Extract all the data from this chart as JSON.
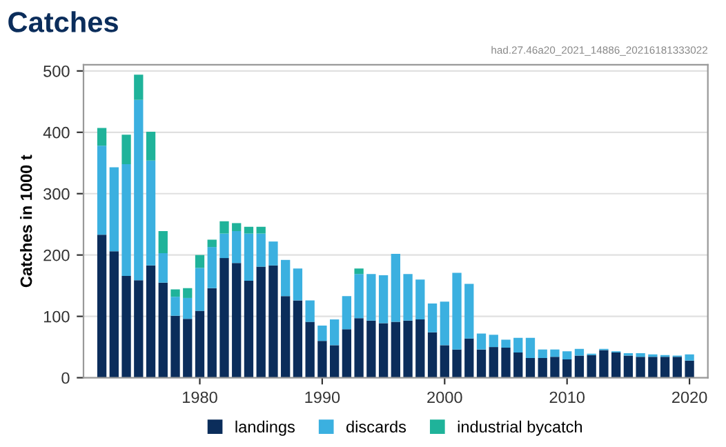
{
  "chart_data": {
    "type": "bar",
    "title": "Catches",
    "ylabel": "Catches in 1000 t",
    "stacked": true,
    "annotations": [
      "had.27.46a20_2021_14886_20216181333022"
    ],
    "x": [
      1972,
      1973,
      1974,
      1975,
      1976,
      1977,
      1978,
      1979,
      1980,
      1981,
      1982,
      1983,
      1984,
      1985,
      1986,
      1987,
      1988,
      1989,
      1990,
      1991,
      1992,
      1993,
      1994,
      1995,
      1996,
      1997,
      1998,
      1999,
      2000,
      2001,
      2002,
      2003,
      2004,
      2005,
      2006,
      2007,
      2008,
      2009,
      2010,
      2011,
      2012,
      2013,
      2014,
      2015,
      2016,
      2017,
      2018,
      2019,
      2020
    ],
    "series": [
      {
        "name": "landings",
        "color": "#0b2d5b",
        "values": [
          233,
          206,
          166,
          159,
          183,
          155,
          101,
          96,
          109,
          146,
          195,
          187,
          158,
          181,
          183,
          133,
          126,
          91,
          60,
          53,
          79,
          97,
          93,
          89,
          91,
          93,
          95,
          74,
          53,
          46,
          64,
          46,
          50,
          49,
          41,
          32,
          32,
          34,
          30,
          36,
          37,
          45,
          41,
          36,
          34,
          34,
          34,
          34,
          28
        ]
      },
      {
        "name": "discards",
        "color": "#3bb0e0",
        "values": [
          145,
          137,
          182,
          294,
          171,
          48,
          31,
          34,
          70,
          67,
          40,
          52,
          77,
          54,
          39,
          59,
          52,
          35,
          25,
          42,
          54,
          72,
          76,
          78,
          111,
          76,
          65,
          47,
          71,
          125,
          89,
          26,
          20,
          13,
          24,
          33,
          14,
          12,
          13,
          11,
          2,
          2,
          2,
          4,
          6,
          4,
          3,
          2,
          10
        ]
      },
      {
        "name": "industrial bycatch",
        "color": "#1fb39a",
        "values": [
          29,
          0,
          48,
          41,
          47,
          36,
          12,
          16,
          21,
          12,
          20,
          13,
          11,
          11,
          0,
          0,
          0,
          0,
          0,
          0,
          0,
          9,
          0,
          0,
          0,
          0,
          0,
          0,
          0,
          0,
          0,
          0,
          0,
          0,
          0,
          0,
          0,
          0,
          0,
          0,
          0,
          0,
          0,
          0,
          0,
          0,
          0,
          0,
          0
        ]
      }
    ],
    "xlim": [
      1970.5,
      2021.5
    ],
    "xticks": [
      1980,
      1990,
      2000,
      2010,
      2020
    ],
    "ylim": [
      0,
      510
    ],
    "yticks": [
      0,
      100,
      200,
      300,
      400,
      500
    ],
    "grid": "y",
    "legend": "bottom"
  }
}
